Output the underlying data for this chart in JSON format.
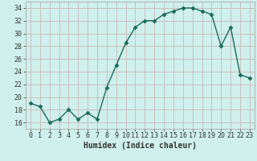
{
  "x": [
    0,
    1,
    2,
    3,
    4,
    5,
    6,
    7,
    8,
    9,
    10,
    11,
    12,
    13,
    14,
    15,
    16,
    17,
    18,
    19,
    20,
    21,
    22,
    23
  ],
  "y": [
    19,
    18.5,
    16,
    16.5,
    18,
    16.5,
    17.5,
    16.5,
    21.5,
    25,
    28.5,
    31,
    32,
    32,
    33,
    33.5,
    34,
    34,
    33.5,
    33,
    28,
    31,
    23.5,
    23
  ],
  "line_color": "#1a6b5a",
  "marker": "D",
  "marker_size": 2.5,
  "bg_color": "#cff0ec",
  "grid_color": "#c8b8b8",
  "xlabel": "Humidex (Indice chaleur)",
  "xlim": [
    -0.5,
    23.5
  ],
  "ylim": [
    15,
    35
  ],
  "yticks": [
    16,
    18,
    20,
    22,
    24,
    26,
    28,
    30,
    32,
    34
  ],
  "xticks": [
    0,
    1,
    2,
    3,
    4,
    5,
    6,
    7,
    8,
    9,
    10,
    11,
    12,
    13,
    14,
    15,
    16,
    17,
    18,
    19,
    20,
    21,
    22,
    23
  ],
  "xlabel_fontsize": 7,
  "tick_fontsize": 6,
  "tick_color": "#333333",
  "spine_color": "#aaaaaa",
  "linewidth": 1.0
}
